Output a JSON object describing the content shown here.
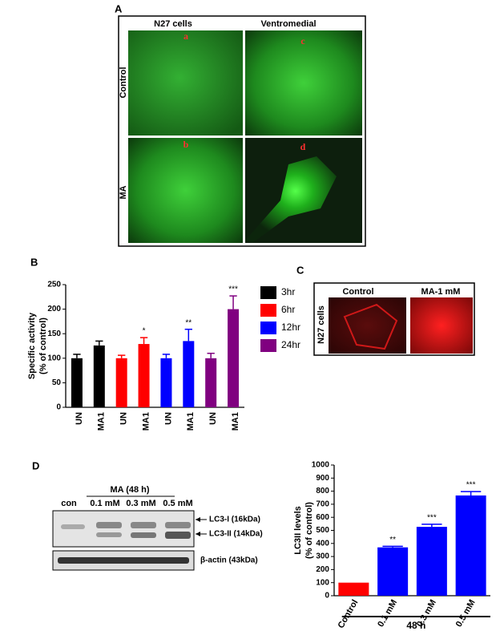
{
  "panels": {
    "A": {
      "label": "A",
      "columns": [
        "N27 cells",
        "Ventromedial"
      ],
      "rows": [
        "Control",
        "MA"
      ],
      "letters": [
        "a",
        "c",
        "b",
        "d"
      ]
    },
    "B": {
      "label": "B"
    },
    "C": {
      "label": "C",
      "columns": [
        "Control",
        "MA-1 mM"
      ],
      "row": "N27 cells"
    },
    "D": {
      "label": "D",
      "blot": {
        "treatment": "MA (48 h)",
        "lanes": [
          "con",
          "0.1 mM",
          "0.3 mM",
          "0.5 mM"
        ],
        "bands": [
          "LC3-I (16kDa)",
          "LC3-II (14kDa)",
          "β-actin (43kDa)"
        ]
      }
    }
  },
  "chart_data": [
    {
      "type": "bar",
      "y_label": [
        "Specific activity",
        "(% of control)"
      ],
      "categories": [
        "UN",
        "MA1"
      ],
      "series": [
        {
          "name": "3hr",
          "color": "#000000",
          "values": [
            100,
            126
          ],
          "errors": [
            8,
            9
          ],
          "annotations": [
            null,
            null
          ]
        },
        {
          "name": "6hr",
          "color": "#ff0000",
          "values": [
            100,
            129
          ],
          "errors": [
            6,
            13
          ],
          "annotations": [
            null,
            "*"
          ]
        },
        {
          "name": "12hr",
          "color": "#0000ff",
          "values": [
            100,
            135
          ],
          "errors": [
            8,
            24
          ],
          "annotations": [
            null,
            "**"
          ]
        },
        {
          "name": "24hr",
          "color": "#800080",
          "values": [
            100,
            200
          ],
          "errors": [
            10,
            27
          ],
          "annotations": [
            null,
            "***"
          ]
        }
      ],
      "ylim": [
        0,
        250
      ],
      "yticks": [
        0,
        50,
        100,
        150,
        200,
        250
      ],
      "legend": "right"
    },
    {
      "type": "bar",
      "y_label": [
        "LC3II levels",
        "(% of control)"
      ],
      "categories": [
        "Control",
        "0.1 mM",
        "0.3 mM",
        "0.5 mM"
      ],
      "series": [
        {
          "color": "#0000ff",
          "colors": [
            "#ff0000",
            "#0000ff",
            "#0000ff",
            "#0000ff"
          ],
          "values": [
            100,
            370,
            527,
            767
          ],
          "errors": [
            0,
            8,
            20,
            30
          ],
          "annotations": [
            null,
            "**",
            "***",
            "***"
          ]
        }
      ],
      "ylim": [
        0,
        1000
      ],
      "yticks": [
        0,
        100,
        200,
        300,
        400,
        500,
        600,
        700,
        800,
        900,
        1000
      ],
      "group_label": "48 h"
    }
  ]
}
